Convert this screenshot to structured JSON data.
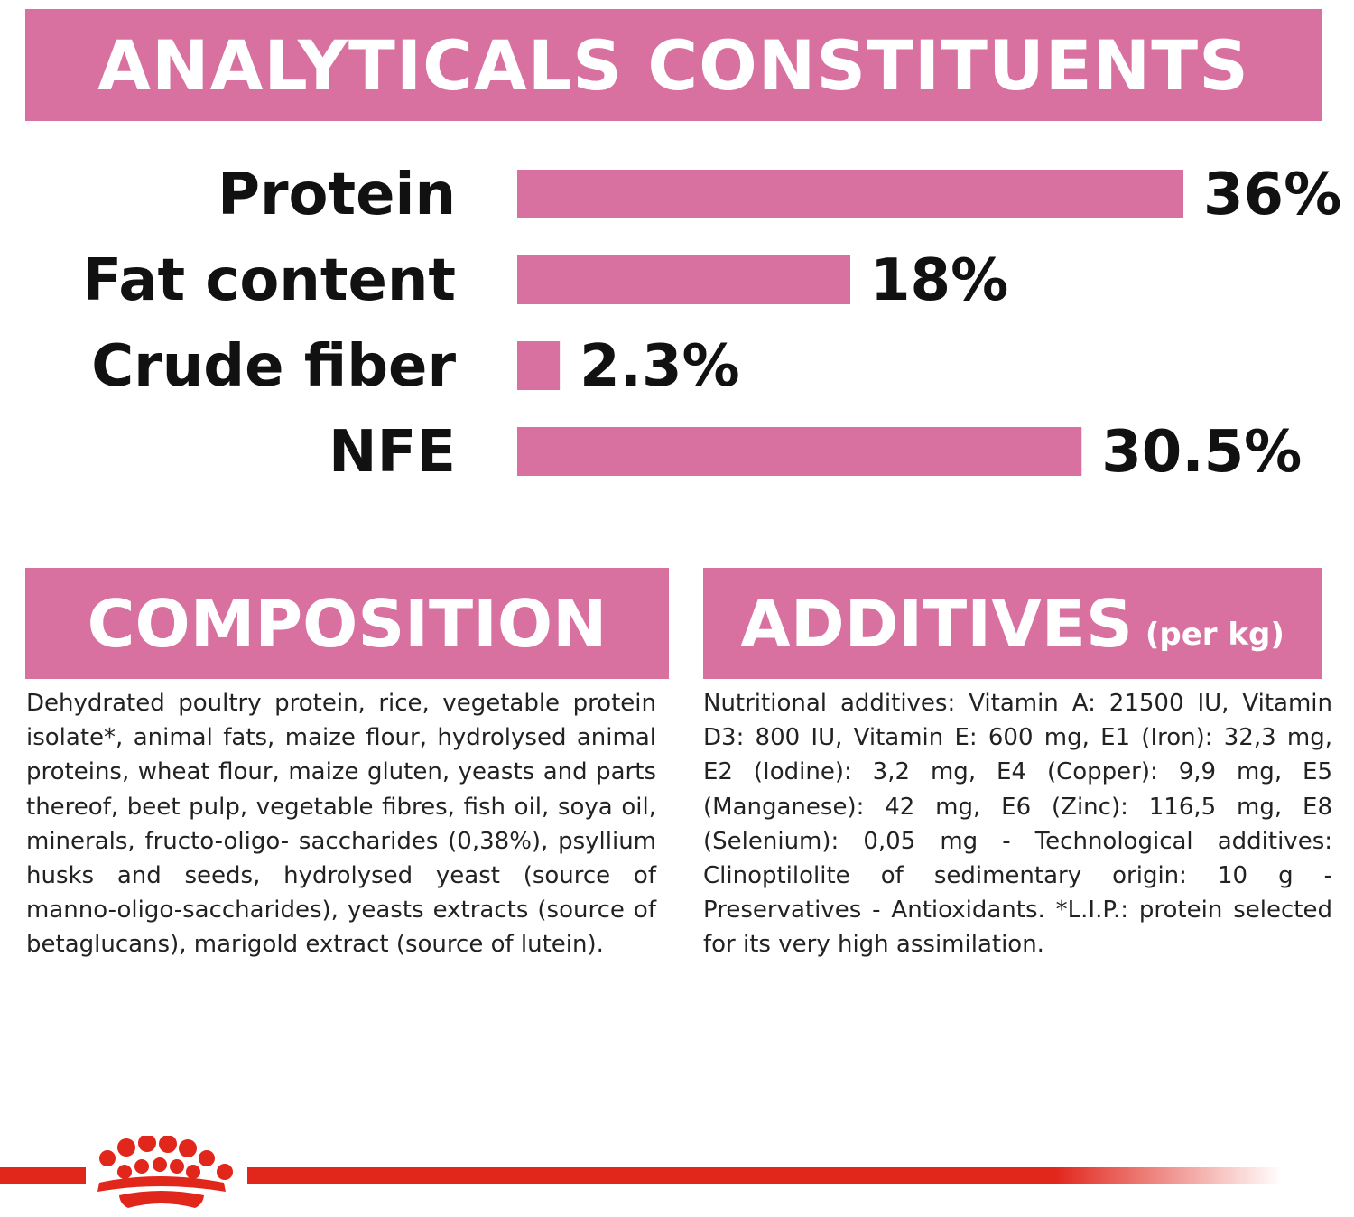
{
  "colors": {
    "accent": "#d8719f",
    "brand_red": "#e1261c"
  },
  "chart_data": {
    "type": "bar",
    "orientation": "horizontal",
    "title": "ANALYTICALS CONSTITUENTS",
    "categories": [
      "Protein",
      "Fat content",
      "Crude fiber",
      "NFE"
    ],
    "values": [
      36,
      18,
      2.3,
      30.5
    ],
    "value_labels": [
      "36%",
      "18%",
      "2.3%",
      "30.5%"
    ],
    "unit": "%",
    "xlim": [
      0,
      36
    ],
    "grid": false,
    "legend": "none"
  },
  "composition": {
    "title": "COMPOSITION",
    "text": "Dehydrated poultry protein, rice, vegetable protein isolate*, animal fats, maize flour, hydrolysed animal proteins, wheat flour, maize gluten, yeasts and parts thereof, beet pulp, vegetable fibres, fish oil, soya oil, minerals, fructo-oligo- saccharides (0,38%), psyllium husks and seeds, hydrolysed yeast (source of manno-oligo-saccharides), yeasts extracts (source of betaglucans), marigold extract (source of lutein)."
  },
  "additives": {
    "title": "ADDITIVES",
    "subtitle": "(per kg)",
    "text": "Nutritional additives: Vitamin A: 21500 IU, Vitamin D3: 800 IU, Vitamin E: 600 mg, E1 (Iron): 32,3 mg, E2 (Iodine): 3,2 mg, E4 (Copper): 9,9 mg, E5 (Manganese): 42 mg, E6 (Zinc): 116,5 mg, E8 (Selenium): 0,05 mg - Technological additives: Clinoptilolite of sedimentary origin: 10 g - Preservatives - Antioxidants. *L.I.P.: protein selected for its very high assimilation."
  },
  "footer": {
    "logo_icon": "crown-icon"
  }
}
